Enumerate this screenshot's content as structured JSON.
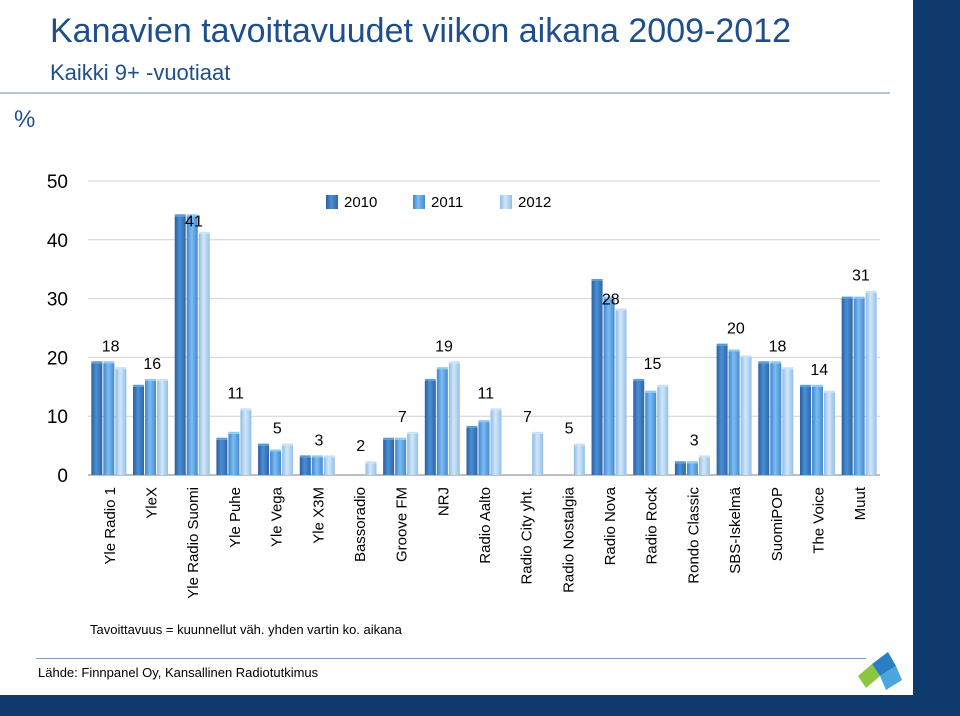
{
  "title": "Kanavien tavoittavuudet viikon aikana 2009-2012",
  "subtitle": "Kaikki 9+ -vuotiaat",
  "unit_label": "%",
  "footnote": "Tavoittavuus = kuunnellut väh. yhden vartin ko. aikana",
  "source": "Lähde: Finnpanel Oy, Kansallinen Radiotutkimus",
  "colors": {
    "band": "#0f3a6e",
    "title": "#1f4e8c",
    "series_2010": "#3f7fc6",
    "series_2011": "#5ea6e8",
    "series_2012": "#a7cdf0"
  },
  "chart_data": {
    "type": "bar",
    "title": "",
    "xlabel": "",
    "ylabel": "%",
    "ylim": [
      0,
      50
    ],
    "yticks": [
      "0",
      "10",
      "20",
      "30",
      "40",
      "50"
    ],
    "grid": true,
    "legend_position": "top-center",
    "categories": [
      "Yle Radio 1",
      "YleX",
      "Yle Radio Suomi",
      "Yle Puhe",
      "Yle Vega",
      "Yle X3M",
      "Bassoradio",
      "Groove FM",
      "NRJ",
      "Radio Aalto",
      "Radio City yht.",
      "Radio Nostalgia",
      "Radio Nova",
      "Radio Rock",
      "Rondo Classic",
      "SBS-Iskelmä",
      "SuomiPOP",
      "The Voice",
      "Muut"
    ],
    "series": [
      {
        "name": "2010",
        "values": [
          19,
          15,
          44,
          6,
          5,
          3,
          null,
          6,
          16,
          8,
          null,
          null,
          33,
          16,
          2,
          22,
          19,
          15,
          30
        ]
      },
      {
        "name": "2011",
        "values": [
          19,
          16,
          44,
          7,
          4,
          3,
          null,
          6,
          18,
          9,
          null,
          null,
          30,
          14,
          2,
          21,
          19,
          15,
          30
        ]
      },
      {
        "name": "2012",
        "values": [
          18,
          16,
          41,
          11,
          5,
          3,
          2,
          7,
          19,
          11,
          7,
          5,
          28,
          15,
          3,
          20,
          18,
          14,
          31
        ]
      }
    ],
    "data_labels": [
      "18",
      "16",
      "41",
      "11",
      "5",
      "3",
      "2",
      "7",
      "19",
      "11",
      "7",
      "5",
      "28",
      "15",
      "3",
      "20",
      "18",
      "14",
      "31"
    ]
  }
}
